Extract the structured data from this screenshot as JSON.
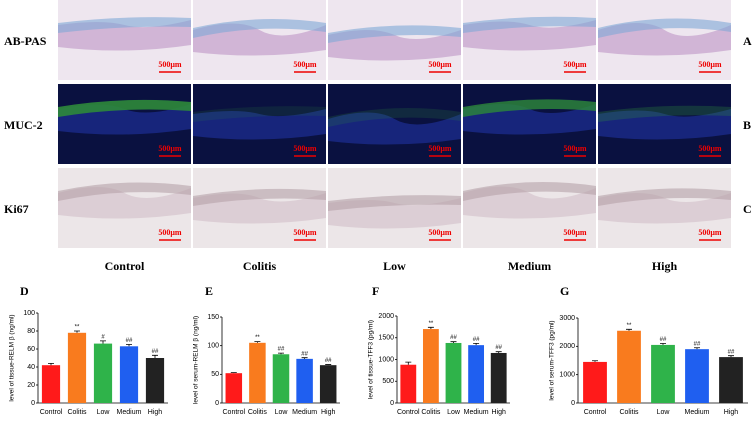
{
  "figure": {
    "row_labels": [
      "AB-PAS",
      "MUC-2",
      "Ki67"
    ],
    "row_panels": [
      "A",
      "B",
      "C"
    ],
    "column_labels": [
      "Control",
      "Colitis",
      "Low",
      "Medium",
      "High"
    ],
    "scale_bars": [
      [
        "500μm",
        "500μm",
        "500μm",
        "500μm",
        "500μm"
      ],
      [
        "500μm",
        "500μm",
        "500μm",
        "500μm",
        "500μm"
      ],
      [
        "500μm",
        "500μm",
        "500μm",
        "500μm",
        "500μm"
      ]
    ]
  },
  "chart_data": [
    {
      "type": "bar",
      "panel": "D",
      "y_label": "level of tissue-RELM β (ng/ml)",
      "categories": [
        "Control",
        "Colitis",
        "Low",
        "Medium",
        "High"
      ],
      "values": [
        42,
        78,
        66,
        63,
        50
      ],
      "errors": [
        2,
        2,
        3,
        2,
        3
      ],
      "annotations": [
        null,
        "**",
        "#",
        "##",
        "##"
      ],
      "colors": [
        "#ff1a1a",
        "#f97b1e",
        "#2fb34a",
        "#1f5ff0",
        "#222222"
      ],
      "ylim": [
        0,
        100
      ],
      "yticks": [
        0,
        20,
        40,
        60,
        80,
        100
      ]
    },
    {
      "type": "bar",
      "panel": "E",
      "y_label": "level of serum-RELM β (ng/ml)",
      "categories": [
        "Control",
        "Colitis",
        "Low",
        "Medium",
        "High"
      ],
      "values": [
        52,
        105,
        85,
        77,
        66
      ],
      "errors": [
        1,
        2,
        2,
        2,
        1
      ],
      "annotations": [
        null,
        "**",
        "##",
        "##",
        "##"
      ],
      "colors": [
        "#ff1a1a",
        "#f97b1e",
        "#2fb34a",
        "#1f5ff0",
        "#222222"
      ],
      "ylim": [
        0,
        150
      ],
      "yticks": [
        0,
        50,
        100,
        150
      ]
    },
    {
      "type": "bar",
      "panel": "F",
      "y_label": "level of tissue-TFF3 (pg/ml)",
      "categories": [
        "Control",
        "Colitis",
        "Low",
        "Medium",
        "High"
      ],
      "values": [
        880,
        1700,
        1380,
        1330,
        1150
      ],
      "errors": [
        60,
        40,
        30,
        40,
        30
      ],
      "annotations": [
        null,
        "**",
        "##",
        "##",
        "##"
      ],
      "colors": [
        "#ff1a1a",
        "#f97b1e",
        "#2fb34a",
        "#1f5ff0",
        "#222222"
      ],
      "ylim": [
        0,
        2000
      ],
      "yticks": [
        0,
        500,
        1000,
        1500,
        2000
      ]
    },
    {
      "type": "bar",
      "panel": "G",
      "y_label": "level of serum-TFF3 (pg/ml)",
      "categories": [
        "Control",
        "Colitis",
        "Low",
        "Medium",
        "High"
      ],
      "values": [
        1450,
        2550,
        2050,
        1900,
        1620
      ],
      "errors": [
        40,
        50,
        50,
        50,
        50
      ],
      "annotations": [
        null,
        "**",
        "##",
        "##",
        "##"
      ],
      "colors": [
        "#ff1a1a",
        "#f97b1e",
        "#2fb34a",
        "#1f5ff0",
        "#222222"
      ],
      "ylim": [
        0,
        3000
      ],
      "yticks": [
        0,
        1000,
        2000,
        3000
      ]
    }
  ]
}
